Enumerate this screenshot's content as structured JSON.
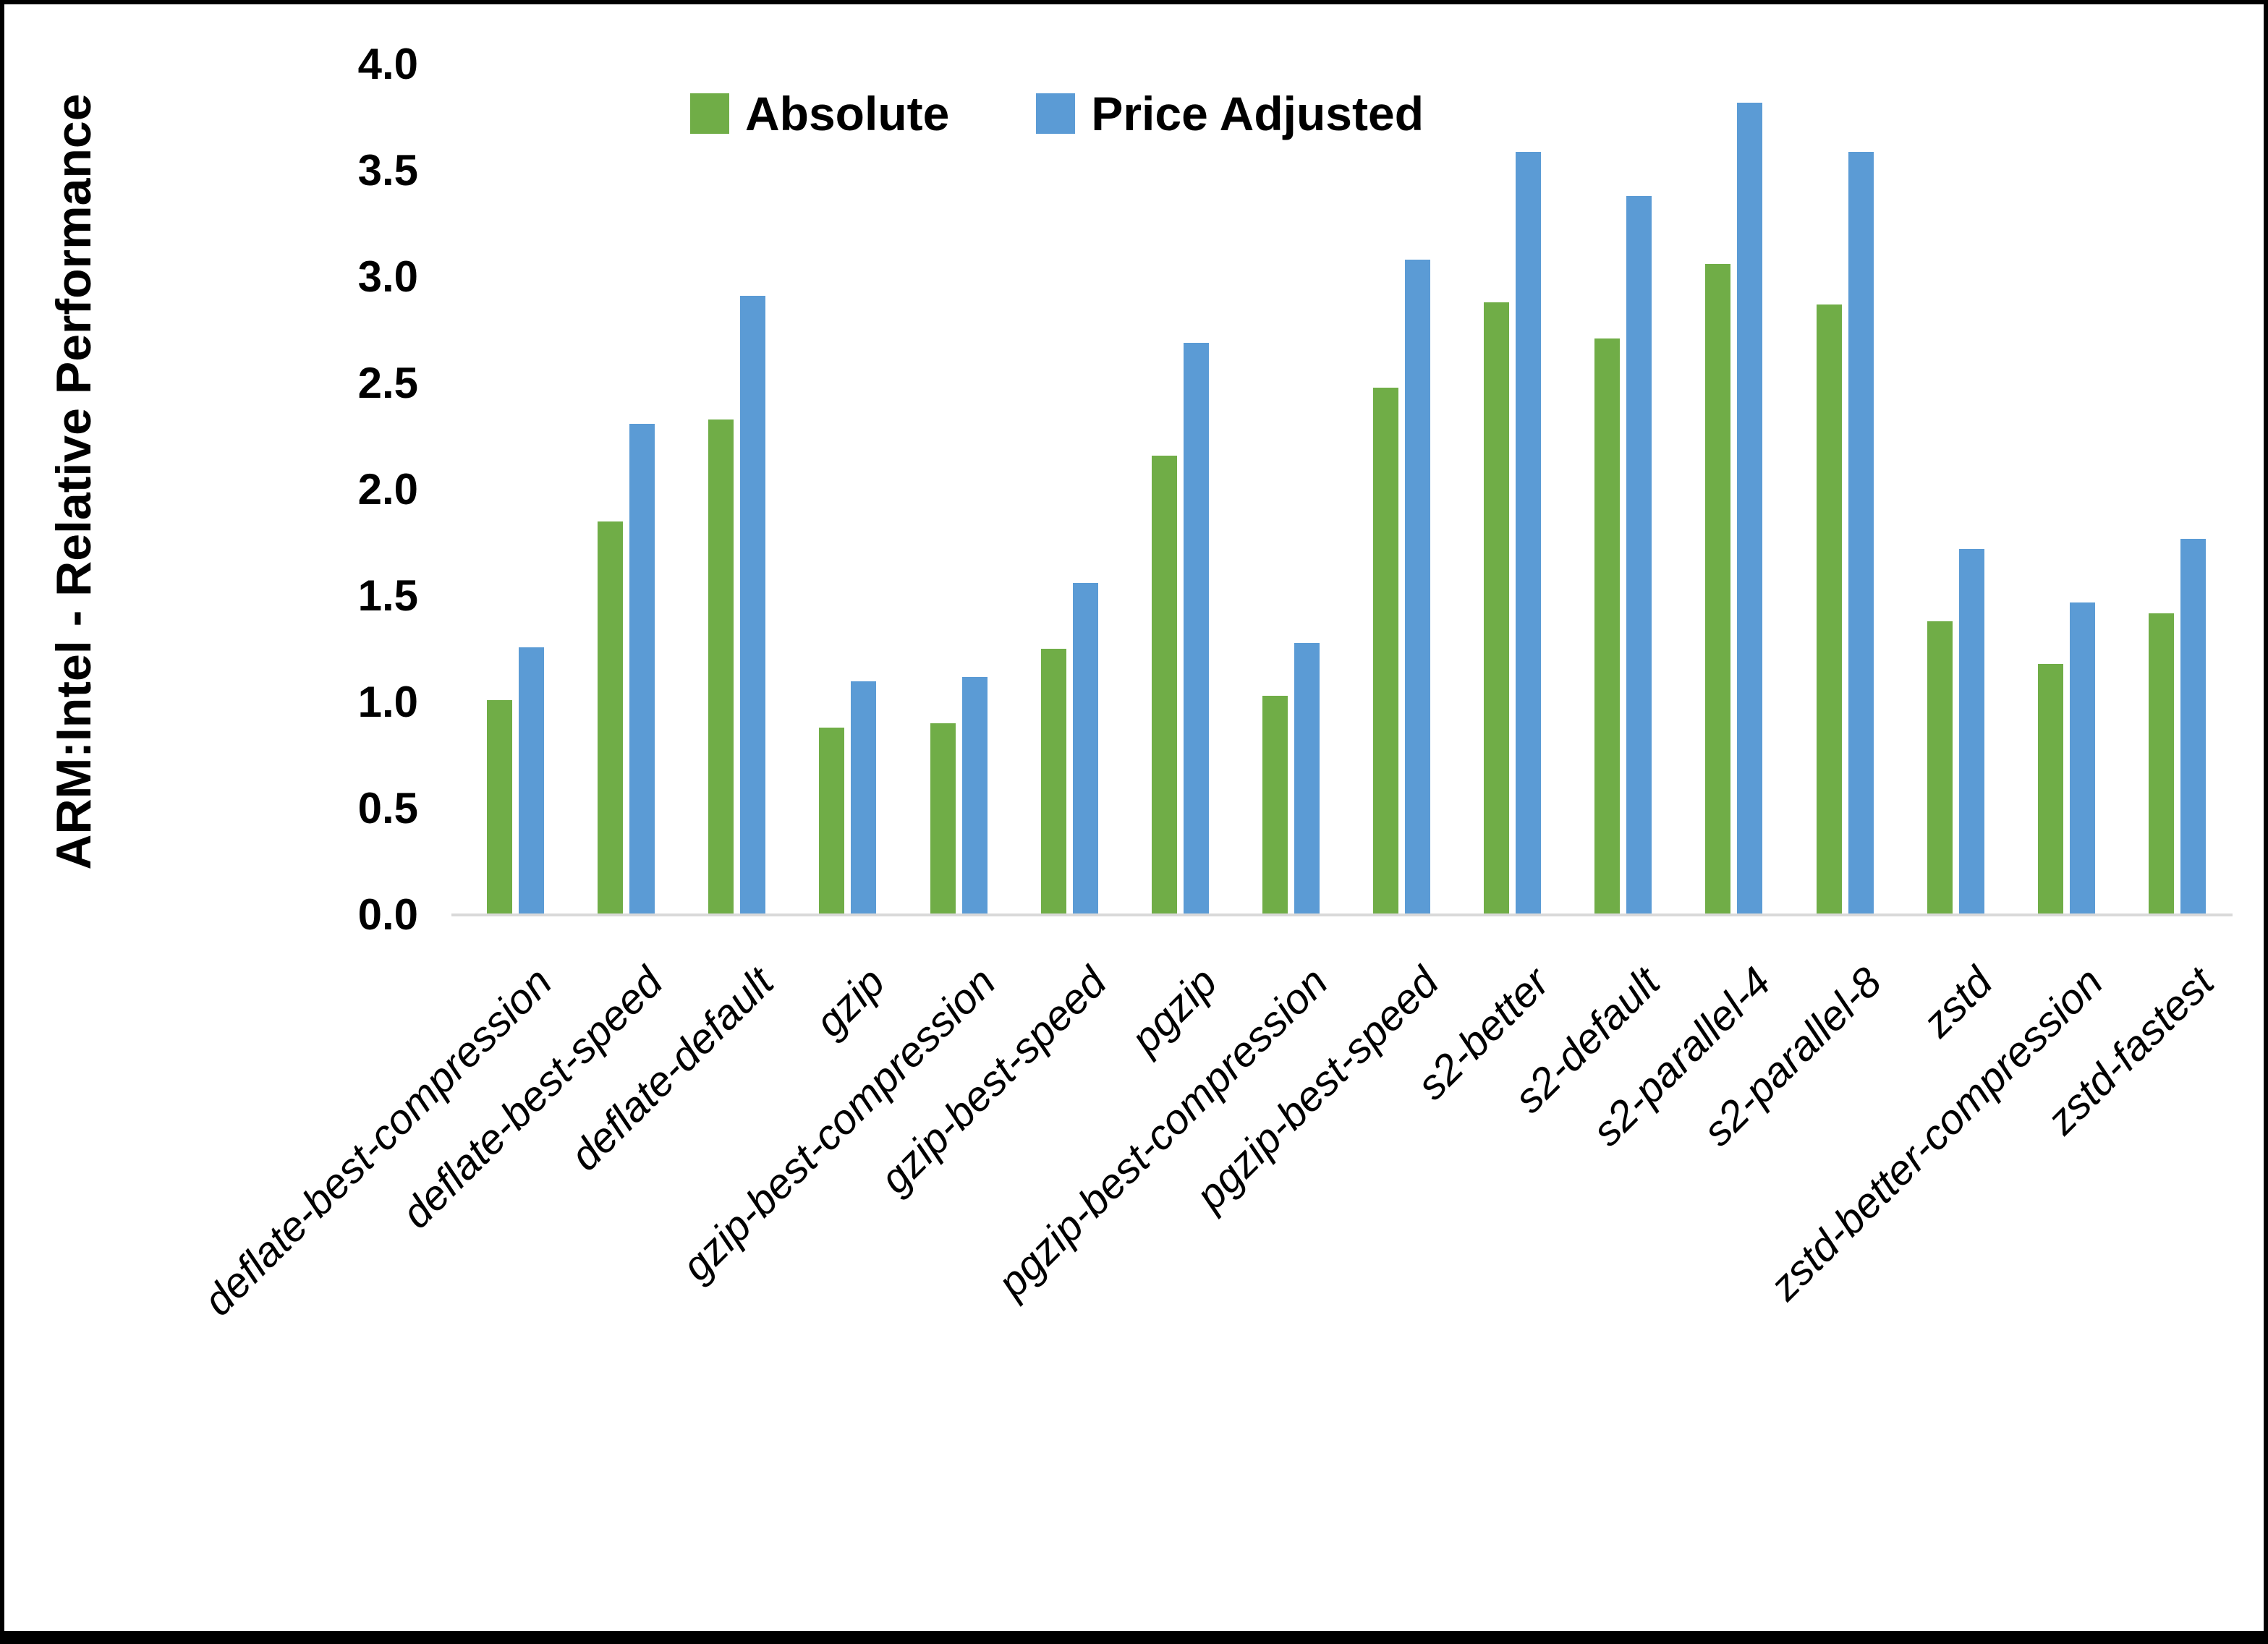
{
  "chart_data": {
    "type": "bar",
    "title": "",
    "xlabel": "",
    "ylabel": "ARM:Intel - Relative Performance",
    "ylim": [
      0.0,
      4.0
    ],
    "ytick_labels": [
      "0.0",
      "0.5",
      "1.0",
      "1.5",
      "2.0",
      "2.5",
      "3.0",
      "3.5",
      "4.0"
    ],
    "grid": false,
    "legend_position": "top-center",
    "categories": [
      "deflate-best-compression",
      "deflate-best-speed",
      "deflate-default",
      "gzip",
      "gzip-best-compression",
      "gzip-best-speed",
      "pgzip",
      "pgzip-best-compression",
      "pgzip-best-speed",
      "s2-better",
      "s2-default",
      "s2-parallel-4",
      "s2-parallel-8",
      "zstd",
      "zstd-better-compression",
      "zstd-fastest"
    ],
    "series": [
      {
        "name": "Absolute",
        "color": "#70AD47",
        "values": [
          1.01,
          1.85,
          2.33,
          0.88,
          0.9,
          1.25,
          2.16,
          1.03,
          2.48,
          2.88,
          2.71,
          3.06,
          2.87,
          1.38,
          1.18,
          1.42
        ]
      },
      {
        "name": "Price Adjusted",
        "color": "#5B9BD5",
        "values": [
          1.26,
          2.31,
          2.91,
          1.1,
          1.12,
          1.56,
          2.69,
          1.28,
          3.08,
          3.59,
          3.38,
          3.82,
          3.59,
          1.72,
          1.47,
          1.77
        ]
      }
    ],
    "axis_line_color": "#D9D9D9"
  }
}
